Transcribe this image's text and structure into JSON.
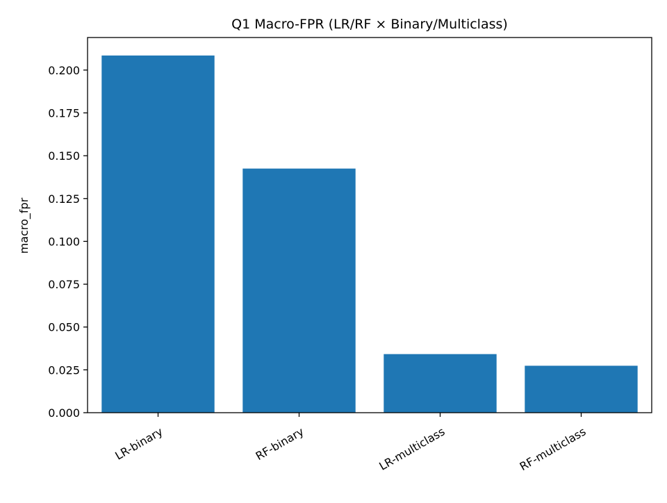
{
  "chart_data": {
    "type": "bar",
    "title": "Q1 Macro-FPR (LR/RF × Binary/Multiclass)",
    "xlabel": "",
    "ylabel": "macro_fpr",
    "categories": [
      "LR-binary",
      "RF-binary",
      "LR-multiclass",
      "RF-multiclass"
    ],
    "values": [
      0.2085,
      0.1425,
      0.0342,
      0.0274
    ],
    "ylim": [
      0,
      0.219
    ],
    "yticks": [
      "0.000",
      "0.025",
      "0.050",
      "0.075",
      "0.100",
      "0.125",
      "0.150",
      "0.175",
      "0.200"
    ],
    "bar_color": "#1f77b4",
    "grid": false,
    "legend": "none"
  }
}
